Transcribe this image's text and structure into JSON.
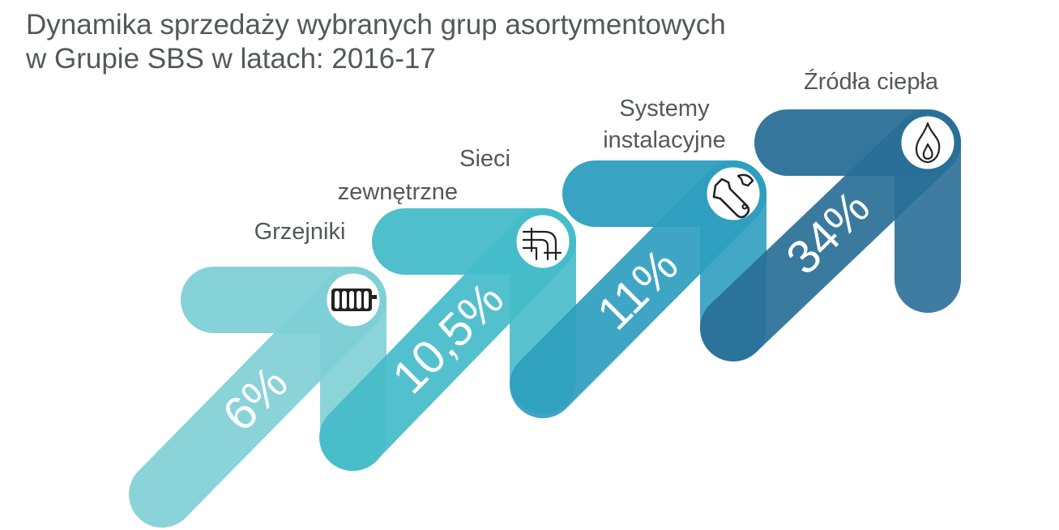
{
  "title": {
    "line1": "Dynamika sprzedaży wybranych grup asortymentowych",
    "line2": "w Grupie SBS w latach: 2016-17"
  },
  "chart_data": {
    "type": "bar",
    "title": "Dynamika sprzedaży wybranych grup asortymentowych w Grupie SBS w latach: 2016-17",
    "categories": [
      "Grzejniki",
      "Sieci zewnętrzne",
      "Systemy instalacyjne",
      "Źródła ciepła"
    ],
    "values": [
      6,
      10.5,
      11,
      34
    ],
    "unit": "%",
    "value_labels": [
      "6%",
      "10,5%",
      "11%",
      "34%"
    ],
    "category_label_lines": [
      [
        "Grzejniki"
      ],
      [
        "Sieci",
        "zewnętrzne"
      ],
      [
        "Systemy",
        "instalacyjne"
      ],
      [
        "Źródła ciepła"
      ]
    ],
    "icons": [
      "radiator-icon",
      "pipes-icon",
      "wrench-icon",
      "flame-icon"
    ],
    "colors": [
      "#7fd0d6",
      "#45bcc9",
      "#2e9fbf",
      "#2a6f97"
    ],
    "grid": false,
    "legend": "none"
  }
}
